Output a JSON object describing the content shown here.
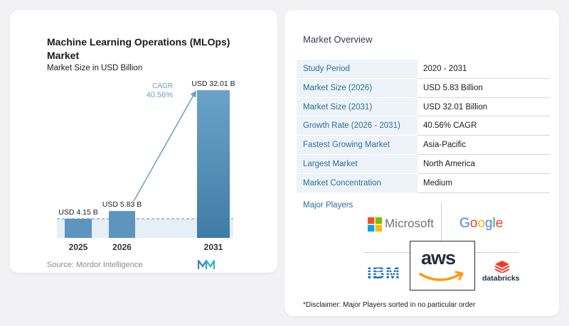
{
  "chart_data": {
    "type": "bar",
    "title": "Machine Learning Operations (MLOps) Market",
    "subtitle": "Market Size in USD Billion",
    "categories": [
      "2025",
      "2026",
      "2031"
    ],
    "values": [
      4.15,
      5.83,
      32.01
    ],
    "value_labels": [
      "USD 4.15 B",
      "USD 5.83 B",
      "USD 32.01 B"
    ],
    "cagr_label": "CAGR",
    "cagr_value": "40.56%",
    "source": "Source: Mordor Intelligence",
    "colors": {
      "bar_light": "#5d95be",
      "bar_dark": "#2f6d98",
      "arrow": "#6d9ec4",
      "band": "#e6eef6"
    }
  },
  "overview": {
    "title": "Market Overview",
    "rows": [
      {
        "label": "Study Period",
        "value": "2020 - 2031"
      },
      {
        "label": "Market Size (2026)",
        "value": "USD 5.83 Billion"
      },
      {
        "label": "Market Size (2031)",
        "value": "USD 32.01 Billion"
      },
      {
        "label": "Growth Rate (2026 - 2031)",
        "value": "40.56% CAGR"
      },
      {
        "label": "Fastest Growing Market",
        "value": "Asia-Pacific"
      },
      {
        "label": "Largest Market",
        "value": "North America"
      },
      {
        "label": "Market Concentration",
        "value": "Medium"
      }
    ],
    "players_label": "Major Players",
    "players": {
      "microsoft": "Microsoft",
      "google": "Google",
      "ibm": "IBM",
      "aws": "aws",
      "databricks": "databricks"
    },
    "disclaimer": "*Disclaimer: Major Players sorted in no particular order"
  }
}
